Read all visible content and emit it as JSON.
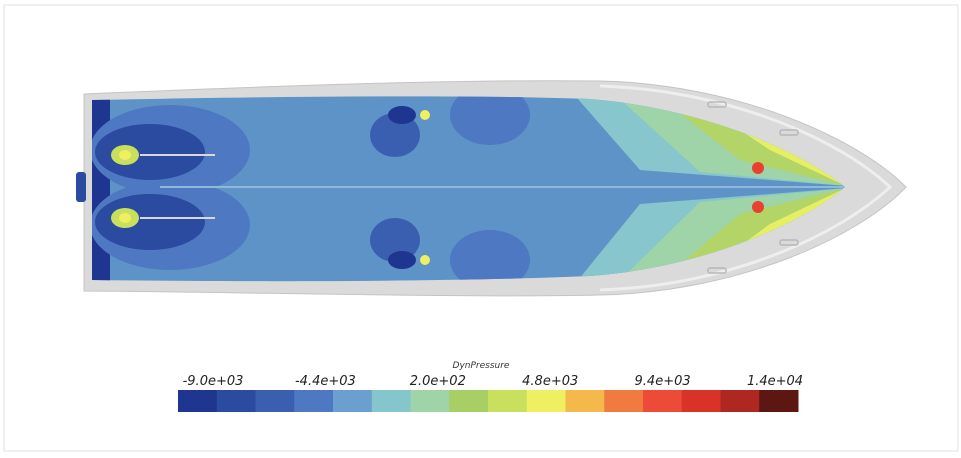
{
  "colorbar": {
    "title": "DynPressure",
    "ticks": [
      {
        "value": -9000,
        "label": "-9.0e+03"
      },
      {
        "value": -4400,
        "label": "-4.4e+03"
      },
      {
        "value": 200,
        "label": "2.0e+02"
      },
      {
        "value": 4800,
        "label": "4.8e+03"
      },
      {
        "value": 9400,
        "label": "9.4e+03"
      },
      {
        "value": 14000,
        "label": "1.4e+04"
      }
    ],
    "colors": [
      "#1e3690",
      "#2a4b9f",
      "#3a5fb1",
      "#4e78c2",
      "#6a9fd0",
      "#84c6cc",
      "#9fd3a8",
      "#a8cf63",
      "#c9e05f",
      "#eef061",
      "#f4b94a",
      "#f07a40",
      "#ec4b38",
      "#d93328",
      "#ae2720",
      "#5c1712"
    ]
  }
}
